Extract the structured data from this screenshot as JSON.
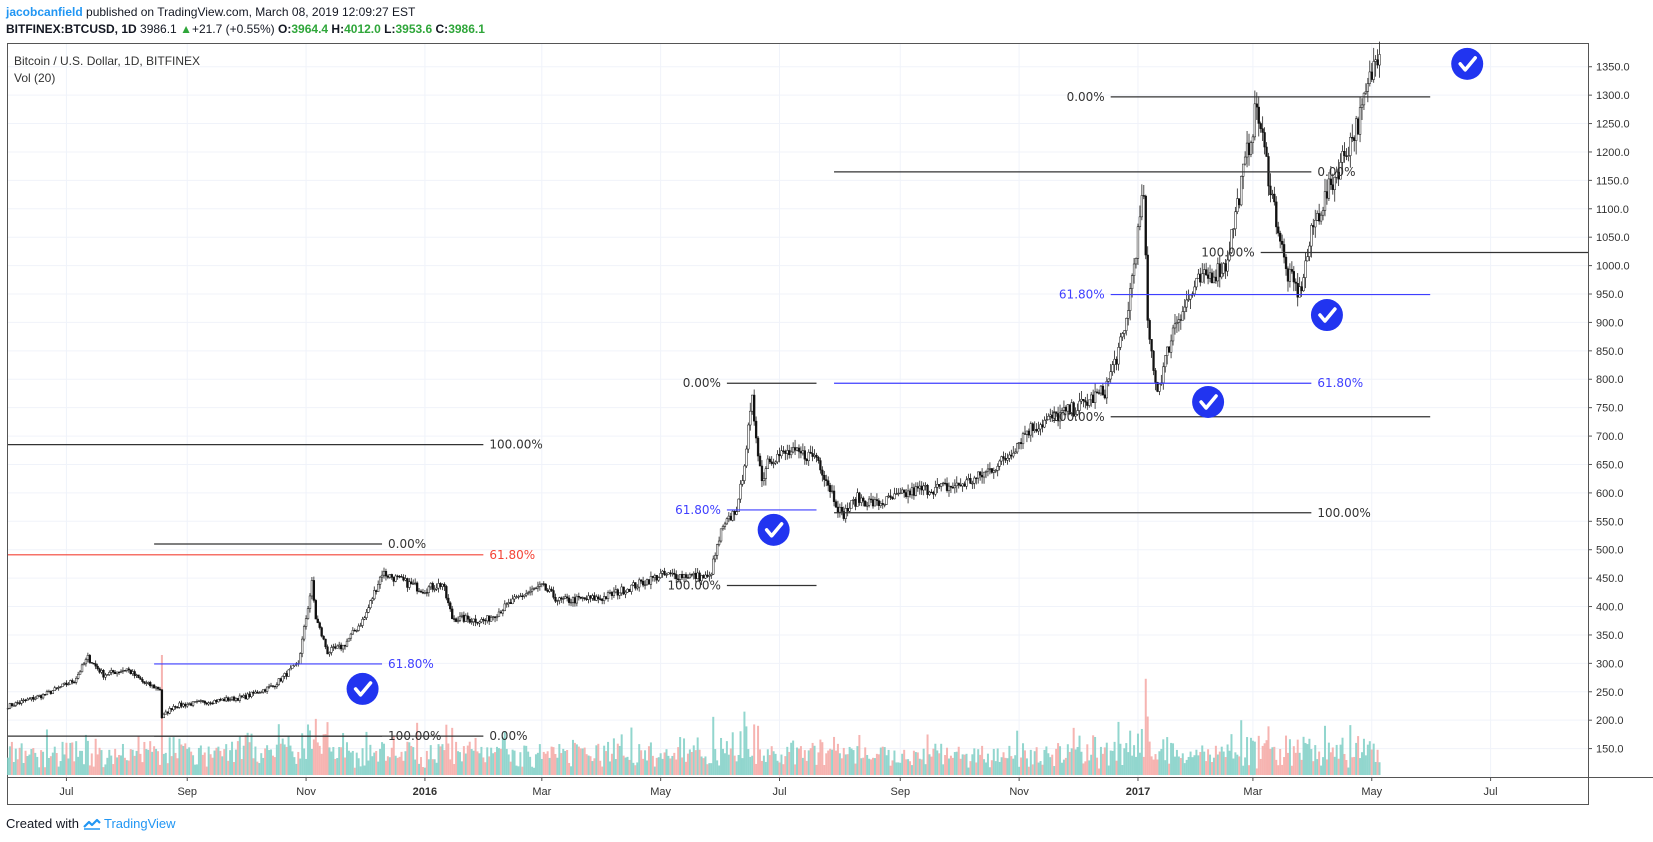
{
  "header": {
    "author": "jacobcanfield",
    "published": " published on TradingView.com, March 08, 2019 12:09:27 EST",
    "symbol": "BITFINEX:BTCUSD, 1D",
    "last": "3986.1",
    "change": "+21.7 (+0.55%)",
    "o_label": "O:",
    "o": "3964.4",
    "h_label": "H:",
    "h": "4012.0",
    "l_label": "L:",
    "l": "3953.6",
    "c_label": "C:",
    "c": "3986.1"
  },
  "legend": {
    "title": "Bitcoin / U.S. Dollar, 1D, BITFINEX",
    "volume": "Vol (20)"
  },
  "footer": {
    "created": "Created with",
    "brand": "TradingView"
  },
  "colors": {
    "fib_black": "#333333",
    "fib_blue": "#3f3fff",
    "fib_red": "#f44336",
    "check": "#2134f0",
    "vol_up": "#7fcfc6",
    "vol_down": "#f4a7a3"
  },
  "chart_data": {
    "type": "candlestick",
    "title": "Bitcoin / U.S. Dollar, 1D, BITFINEX",
    "ylim": [
      100,
      1390
    ],
    "y_ticks": [
      150,
      200,
      250,
      300,
      350,
      400,
      450,
      500,
      550,
      600,
      650,
      700,
      750,
      800,
      850,
      900,
      950,
      1000,
      1050,
      1100,
      1150,
      1200,
      1250,
      1300,
      1350
    ],
    "x_ticks": [
      {
        "label": "Jul",
        "date": "2015-07-01"
      },
      {
        "label": "Sep",
        "date": "2015-09-01"
      },
      {
        "label": "Nov",
        "date": "2015-11-01"
      },
      {
        "label": "2016",
        "date": "2016-01-01",
        "bold": true
      },
      {
        "label": "Mar",
        "date": "2016-03-01"
      },
      {
        "label": "May",
        "date": "2016-05-01"
      },
      {
        "label": "Jul",
        "date": "2016-07-01"
      },
      {
        "label": "Sep",
        "date": "2016-09-01"
      },
      {
        "label": "Nov",
        "date": "2016-11-01"
      },
      {
        "label": "2017",
        "date": "2017-01-01",
        "bold": true
      },
      {
        "label": "Mar",
        "date": "2017-03-01"
      },
      {
        "label": "May",
        "date": "2017-05-01"
      },
      {
        "label": "Jul",
        "date": "2017-07-01"
      }
    ],
    "x_range": [
      "2015-06-01",
      "2017-08-20"
    ],
    "price_path": [
      [
        "2015-06-01",
        225
      ],
      [
        "2015-06-20",
        245
      ],
      [
        "2015-07-05",
        270
      ],
      [
        "2015-07-12",
        310
      ],
      [
        "2015-07-20",
        280
      ],
      [
        "2015-08-01",
        290
      ],
      [
        "2015-08-10",
        265
      ],
      [
        "2015-08-18",
        255
      ],
      [
        "2015-08-19",
        205
      ],
      [
        "2015-08-25",
        225
      ],
      [
        "2015-09-10",
        232
      ],
      [
        "2015-09-30",
        240
      ],
      [
        "2015-10-15",
        260
      ],
      [
        "2015-10-28",
        300
      ],
      [
        "2015-11-04",
        440
      ],
      [
        "2015-11-06",
        380
      ],
      [
        "2015-11-12",
        320
      ],
      [
        "2015-11-20",
        330
      ],
      [
        "2015-12-01",
        380
      ],
      [
        "2015-12-10",
        460
      ],
      [
        "2015-12-20",
        445
      ],
      [
        "2015-12-31",
        430
      ],
      [
        "2016-01-10",
        440
      ],
      [
        "2016-01-15",
        380
      ],
      [
        "2016-02-01",
        375
      ],
      [
        "2016-02-20",
        420
      ],
      [
        "2016-03-01",
        435
      ],
      [
        "2016-03-10",
        410
      ],
      [
        "2016-04-01",
        415
      ],
      [
        "2016-04-20",
        440
      ],
      [
        "2016-05-01",
        455
      ],
      [
        "2016-05-15",
        455
      ],
      [
        "2016-05-26",
        450
      ],
      [
        "2016-06-01",
        530
      ],
      [
        "2016-06-10",
        580
      ],
      [
        "2016-06-17",
        760
      ],
      [
        "2016-06-22",
        620
      ],
      [
        "2016-06-25",
        660
      ],
      [
        "2016-07-05",
        670
      ],
      [
        "2016-07-20",
        665
      ],
      [
        "2016-08-02",
        560
      ],
      [
        "2016-08-10",
        590
      ],
      [
        "2016-08-20",
        580
      ],
      [
        "2016-09-10",
        605
      ],
      [
        "2016-09-30",
        612
      ],
      [
        "2016-10-10",
        625
      ],
      [
        "2016-10-25",
        660
      ],
      [
        "2016-11-05",
        710
      ],
      [
        "2016-11-20",
        735
      ],
      [
        "2016-12-01",
        750
      ],
      [
        "2016-12-15",
        780
      ],
      [
        "2016-12-25",
        880
      ],
      [
        "2017-01-04",
        1130
      ],
      [
        "2017-01-06",
        890
      ],
      [
        "2017-01-11",
        780
      ],
      [
        "2017-01-20",
        900
      ],
      [
        "2017-02-01",
        970
      ],
      [
        "2017-02-15",
        1000
      ],
      [
        "2017-02-25",
        1180
      ],
      [
        "2017-03-03",
        1280
      ],
      [
        "2017-03-10",
        1140
      ],
      [
        "2017-03-18",
        990
      ],
      [
        "2017-03-25",
        950
      ],
      [
        "2017-04-01",
        1070
      ],
      [
        "2017-04-15",
        1180
      ],
      [
        "2017-04-25",
        1260
      ],
      [
        "2017-05-05",
        1390
      ]
    ],
    "volume_ylim": [
      0,
      100
    ],
    "fib_levels": [
      {
        "value": 685,
        "x0": "2015-06-01",
        "x1": "2016-01-31",
        "label": "100.00%",
        "color": "black"
      },
      {
        "value": 491,
        "x0": "2015-06-01",
        "x1": "2016-01-31",
        "label": "61.80%",
        "color": "red"
      },
      {
        "value": 510,
        "x0": "2015-08-15",
        "x1": "2015-12-10",
        "label": "0.00%",
        "color": "black"
      },
      {
        "value": 299,
        "x0": "2015-08-15",
        "x1": "2015-12-10",
        "label": "61.80%",
        "color": "blue"
      },
      {
        "value": 172,
        "x0": "2015-08-15",
        "x1": "2015-12-10",
        "label": "100.00%",
        "color": "black"
      },
      {
        "value": 172,
        "x0": "2015-06-01",
        "x1": "2016-01-31",
        "label": "0.00%",
        "color": "black"
      },
      {
        "value": 793,
        "x0": "2016-06-04",
        "x1": "2016-07-20",
        "label": "0.00%",
        "color": "black"
      },
      {
        "value": 570,
        "x0": "2016-06-04",
        "x1": "2016-07-20",
        "label": "61.80%",
        "color": "blue"
      },
      {
        "value": 437,
        "x0": "2016-06-04",
        "x1": "2016-07-20",
        "label": "100.00%",
        "color": "black"
      },
      {
        "value": 1165,
        "x0": "2016-07-29",
        "x1": "2017-03-31",
        "label": "0.00%",
        "color": "black"
      },
      {
        "value": 793,
        "x0": "2016-07-29",
        "x1": "2017-03-31",
        "label": "61.80%",
        "color": "blue"
      },
      {
        "value": 565,
        "x0": "2016-07-29",
        "x1": "2017-03-31",
        "label": "100.00%",
        "color": "black"
      },
      {
        "value": 1297,
        "x0": "2016-12-18",
        "x1": "2017-05-31",
        "label": "0.00%",
        "color": "black"
      },
      {
        "value": 949,
        "x0": "2016-12-18",
        "x1": "2017-05-31",
        "label": "61.80%",
        "color": "blue"
      },
      {
        "value": 734,
        "x0": "2016-12-18",
        "x1": "2017-05-31",
        "label": "100.00%",
        "color": "black"
      },
      {
        "value": 1023,
        "x0": "2017-03-05",
        "x1": "2017-08-20",
        "label": "100.00%",
        "color": "black"
      }
    ],
    "checkmarks": [
      {
        "date": "2015-11-30",
        "value": 255
      },
      {
        "date": "2016-06-28",
        "value": 535
      },
      {
        "date": "2017-02-06",
        "value": 760
      },
      {
        "date": "2017-04-08",
        "value": 913
      },
      {
        "date": "2017-06-19",
        "value": 1355
      }
    ]
  }
}
